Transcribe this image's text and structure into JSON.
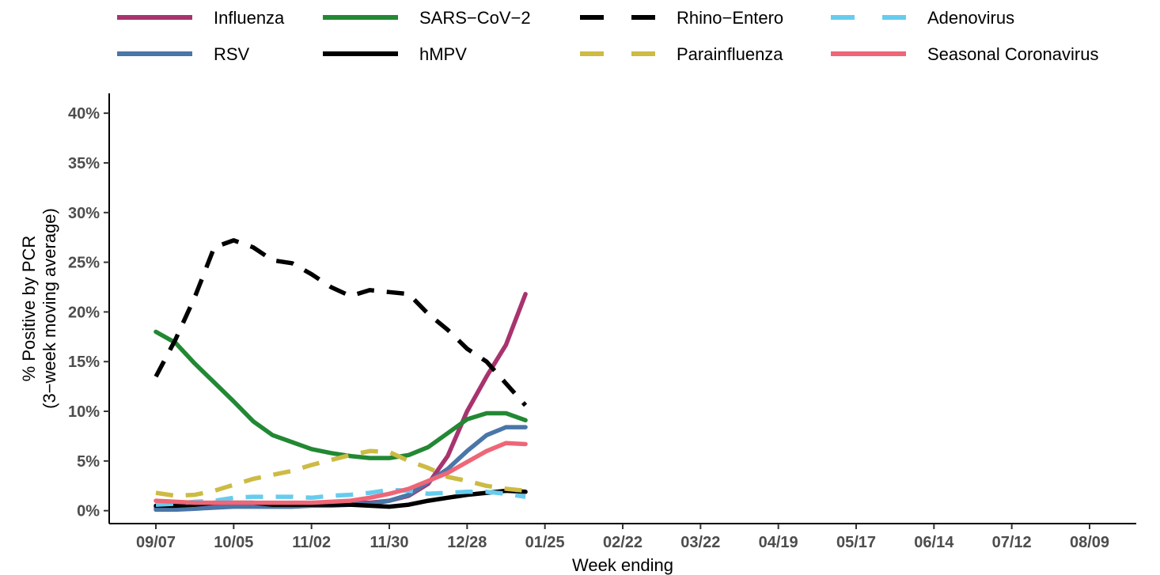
{
  "chart_data": {
    "type": "line",
    "xlabel": "Week ending",
    "ylabel_line1": "% Positive by PCR",
    "ylabel_line2": "(3−week moving average)",
    "ylim": [
      -1.3,
      42
    ],
    "y_ticks": [
      0,
      5,
      10,
      15,
      20,
      25,
      30,
      35,
      40
    ],
    "y_tick_labels": [
      "0%",
      "5%",
      "10%",
      "15%",
      "20%",
      "25%",
      "30%",
      "35%",
      "40%"
    ],
    "x_tick_labels": [
      "09/07",
      "10/05",
      "11/02",
      "11/30",
      "12/28",
      "01/25",
      "02/22",
      "03/22",
      "04/19",
      "05/17",
      "06/14",
      "07/12",
      "08/09"
    ],
    "x_tick_weeks": [
      0,
      4,
      8,
      12,
      16,
      20,
      24,
      28,
      32,
      36,
      40,
      44,
      48
    ],
    "xlim_weeks": [
      -2.4,
      50.4
    ],
    "grid": false,
    "legend_position": "top",
    "series": [
      {
        "name": "Influenza",
        "color": "#A8336E",
        "dash": "solid",
        "values": [
          0.3,
          0.3,
          0.4,
          0.5,
          0.6,
          0.6,
          0.6,
          0.6,
          0.7,
          0.7,
          0.8,
          0.8,
          1.0,
          1.5,
          2.7,
          5.5,
          10.0,
          13.5,
          16.7,
          21.8
        ]
      },
      {
        "name": "RSV",
        "color": "#4A76A8",
        "dash": "solid",
        "values": [
          0.1,
          0.1,
          0.2,
          0.3,
          0.4,
          0.4,
          0.4,
          0.4,
          0.5,
          0.5,
          0.6,
          0.7,
          1.0,
          1.6,
          2.9,
          4.2,
          6.0,
          7.6,
          8.4,
          8.4
        ]
      },
      {
        "name": "SARS−CoV−2",
        "color": "#228833",
        "dash": "solid",
        "values": [
          18.0,
          16.9,
          14.8,
          12.9,
          11.0,
          9.0,
          7.6,
          6.9,
          6.2,
          5.8,
          5.5,
          5.3,
          5.3,
          5.6,
          6.4,
          7.8,
          9.2,
          9.8,
          9.8,
          9.1
        ]
      },
      {
        "name": "hMPV",
        "color": "#000000",
        "dash": "solid",
        "values": [
          0.5,
          0.5,
          0.6,
          0.8,
          0.8,
          0.8,
          0.6,
          0.6,
          0.6,
          0.6,
          0.6,
          0.5,
          0.4,
          0.6,
          1.0,
          1.3,
          1.6,
          1.8,
          2.0,
          1.9
        ]
      },
      {
        "name": "Rhino−Entero",
        "color": "#000000",
        "dash": "dashed",
        "values": [
          13.5,
          17.2,
          21.5,
          26.5,
          27.2,
          26.5,
          25.2,
          24.9,
          23.8,
          22.5,
          21.6,
          22.2,
          22.0,
          21.8,
          19.8,
          18.2,
          16.3,
          15.0,
          12.8,
          10.6
        ]
      },
      {
        "name": "Parainfluenza",
        "color": "#CCBB44",
        "dash": "dashed",
        "values": [
          1.8,
          1.5,
          1.6,
          2.0,
          2.6,
          3.2,
          3.6,
          4.0,
          4.6,
          5.1,
          5.6,
          6.0,
          5.9,
          5.0,
          4.3,
          3.4,
          3.0,
          2.5,
          2.2,
          2.0
        ]
      },
      {
        "name": "Adenovirus",
        "color": "#66CCEE",
        "dash": "dashed",
        "values": [
          0.6,
          0.7,
          0.9,
          1.0,
          1.3,
          1.4,
          1.4,
          1.4,
          1.3,
          1.5,
          1.6,
          1.8,
          2.1,
          2.0,
          1.7,
          1.8,
          1.9,
          1.9,
          1.7,
          1.4
        ]
      },
      {
        "name": "Seasonal Coronavirus",
        "color": "#EE6677",
        "dash": "solid",
        "values": [
          1.0,
          0.9,
          0.8,
          0.8,
          0.8,
          0.8,
          0.8,
          0.8,
          0.8,
          0.9,
          1.0,
          1.3,
          1.7,
          2.2,
          3.0,
          3.8,
          4.9,
          6.0,
          6.8,
          6.7
        ]
      }
    ]
  }
}
